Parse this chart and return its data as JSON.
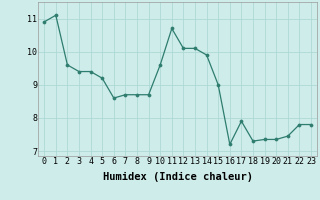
{
  "x": [
    0,
    1,
    2,
    3,
    4,
    5,
    6,
    7,
    8,
    9,
    10,
    11,
    12,
    13,
    14,
    15,
    16,
    17,
    18,
    19,
    20,
    21,
    22,
    23
  ],
  "y": [
    10.9,
    11.1,
    9.6,
    9.4,
    9.4,
    9.2,
    8.6,
    8.7,
    8.7,
    8.7,
    9.6,
    10.7,
    10.1,
    10.1,
    9.9,
    9.0,
    7.2,
    7.9,
    7.3,
    7.35,
    7.35,
    7.45,
    7.8,
    7.8
  ],
  "xlabel": "Humidex (Indice chaleur)",
  "ylim": [
    6.85,
    11.5
  ],
  "xlim": [
    -0.5,
    23.5
  ],
  "yticks": [
    7,
    8,
    9,
    10,
    11
  ],
  "xticks": [
    0,
    1,
    2,
    3,
    4,
    5,
    6,
    7,
    8,
    9,
    10,
    11,
    12,
    13,
    14,
    15,
    16,
    17,
    18,
    19,
    20,
    21,
    22,
    23
  ],
  "line_color": "#2e7d6e",
  "marker_color": "#2e7d6e",
  "bg_color": "#ceecea",
  "grid_color": "#aed8d4",
  "tick_fontsize": 6,
  "label_fontsize": 7.5
}
